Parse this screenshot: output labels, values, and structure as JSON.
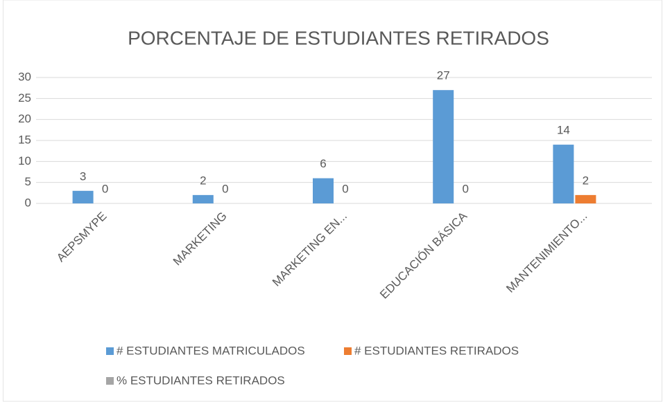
{
  "chart_data": {
    "type": "bar",
    "title": "PORCENTAJE DE ESTUDIANTES RETIRADOS",
    "categories": [
      "AEPSMYPE",
      "MARKETING",
      "MARKETING EN...",
      "EDUCACIÓN BÁSICA",
      "MANTENIMIENTO..."
    ],
    "series": [
      {
        "name": "# ESTUDIANTES MATRICULADOS",
        "color": "#5b9bd5",
        "values": [
          3,
          2,
          6,
          27,
          14
        ]
      },
      {
        "name": "# ESTUDIANTES RETIRADOS",
        "color": "#ed7d31",
        "values": [
          0,
          0,
          0,
          0,
          2
        ]
      },
      {
        "name": "% ESTUDIANTES RETIRADOS",
        "color": "#a5a5a5",
        "values": [
          null,
          null,
          null,
          null,
          null
        ]
      }
    ],
    "ylim": [
      0,
      30
    ],
    "yticks": [
      0,
      5,
      10,
      15,
      20,
      25,
      30
    ],
    "grid": true,
    "legend": "bottom"
  }
}
